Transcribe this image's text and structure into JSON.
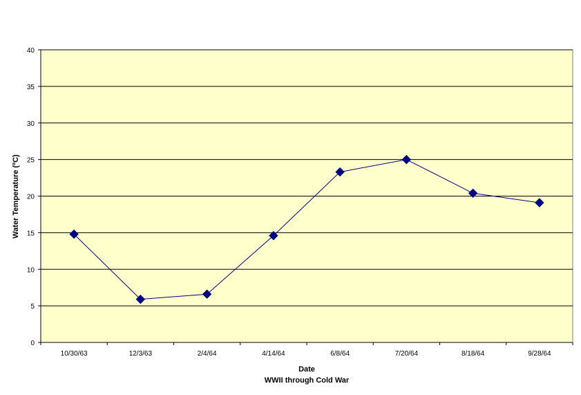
{
  "chart_data": {
    "type": "line",
    "categories": [
      "10/30/63",
      "12/3/63",
      "2/4/64",
      "4/14/64",
      "6/8/64",
      "7/20/64",
      "8/18/64",
      "9/28/64"
    ],
    "series": [
      {
        "values": [
          14.8,
          5.9,
          6.6,
          14.6,
          23.3,
          25.0,
          20.4,
          19.1
        ],
        "color": "#000080",
        "marker": "diamond"
      }
    ],
    "xlabel": "Date",
    "xlabel_sub": "WWII through Cold War",
    "ylabel": "Water Temperature (ºC)",
    "ylim": [
      0,
      40
    ],
    "yticks": [
      0,
      5,
      10,
      15,
      20,
      25,
      30,
      35,
      40
    ],
    "grid": true,
    "plot_background": "#ffffcc",
    "gridline_color": "#000000",
    "legend": "none"
  }
}
